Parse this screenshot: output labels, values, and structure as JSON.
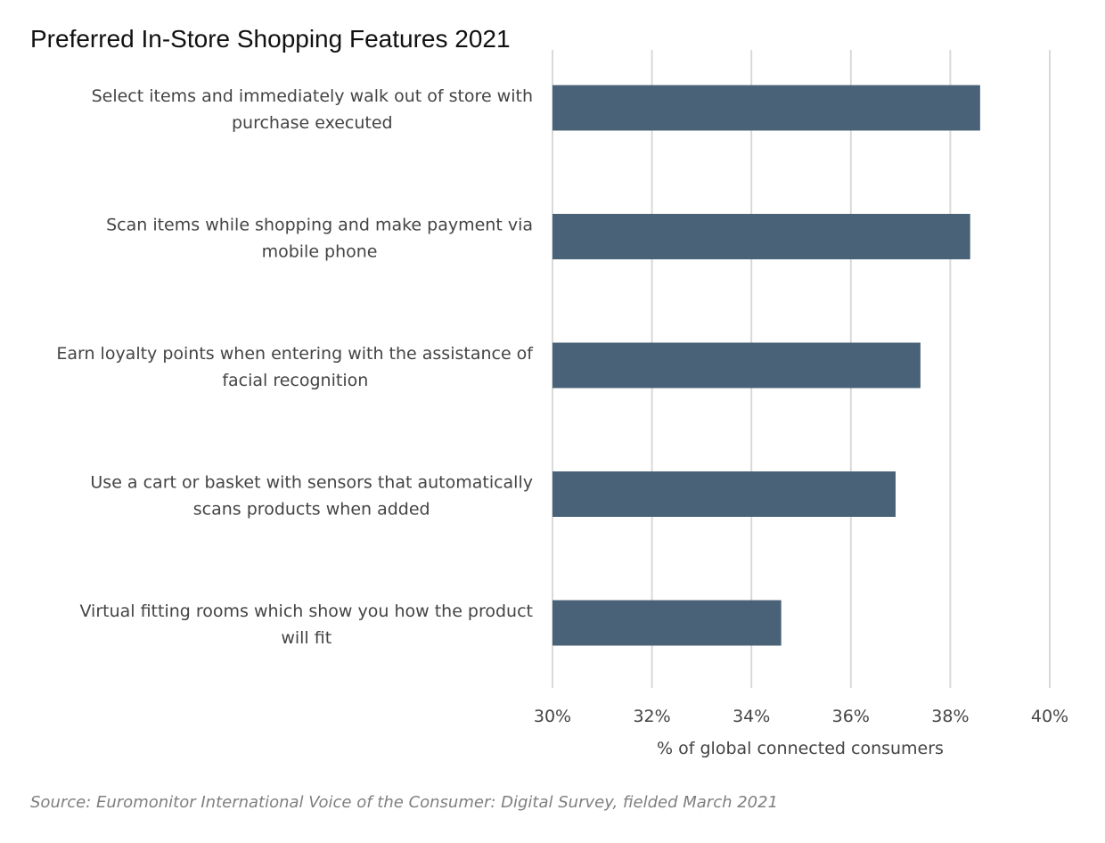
{
  "chart_data": {
    "type": "bar",
    "orientation": "horizontal",
    "title": "Preferred In-Store Shopping Features 2021",
    "categories": [
      [
        "Select items and immediately walk out of store with",
        "purchase executed"
      ],
      [
        "Scan items while shopping and make payment via",
        "mobile phone"
      ],
      [
        "Earn loyalty points when entering with the assistance of",
        "facial recognition"
      ],
      [
        "Use a cart or basket with sensors that automatically",
        "scans products when added"
      ],
      [
        "Virtual fitting rooms which show you how the product",
        "will fit"
      ]
    ],
    "values": [
      38.6,
      38.4,
      37.4,
      36.9,
      34.6
    ],
    "xlabel": "% of global connected consumers",
    "ylabel": "",
    "xlim": [
      30,
      40
    ],
    "xticks": [
      30,
      32,
      34,
      36,
      38,
      40
    ],
    "tick_labels": [
      "30%",
      "32%",
      "34%",
      "36%",
      "38%",
      "40%"
    ],
    "grid": "vertical",
    "bar_color": "#4a6278",
    "grid_color": "#d9d9d9",
    "source": "Source: Euromonitor International Voice of the Consumer: Digital Survey, fielded March 2021"
  }
}
